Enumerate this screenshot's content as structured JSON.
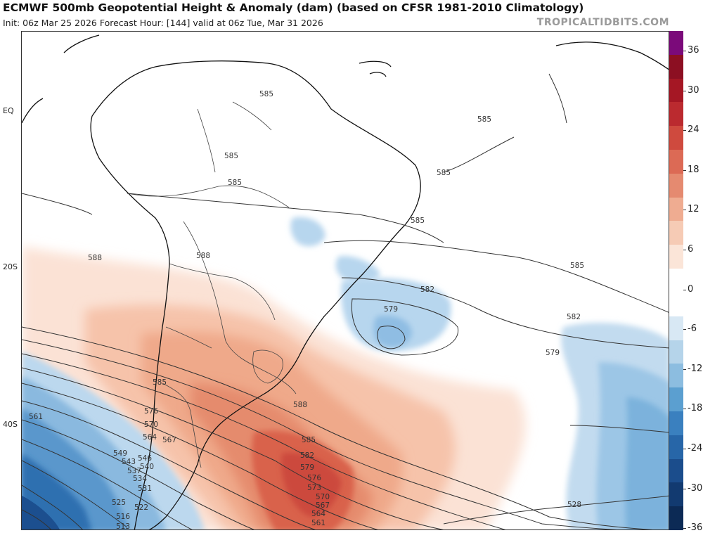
{
  "header": {
    "title": "ECMWF 500mb Geopotential Height & Anomaly (dam) (based on CFSR 1981-2010 Climatology)",
    "subtitle": "Init: 06z Mar 25 2026   Forecast Hour: [144]   valid at 06z Tue, Mar 31 2026",
    "brand": "TROPICALTIDBITS.COM"
  },
  "lat_labels": [
    "EQ",
    "20S",
    "40S"
  ],
  "colorbar": {
    "labels": [
      "36",
      "30",
      "24",
      "18",
      "12",
      "6",
      "0",
      "-6",
      "-12",
      "-18",
      "-24",
      "-30",
      "-36"
    ],
    "colors": [
      "#7b0a7a",
      "#8c0f22",
      "#a51724",
      "#bb2a2f",
      "#cf4a3e",
      "#dc6a55",
      "#e58a70",
      "#efac91",
      "#f6cbb5",
      "#fbe5d8",
      "#ffffff",
      "#ffffff",
      "#d8e8f4",
      "#b5d4ea",
      "#8cbde0",
      "#5b9fd0",
      "#3a80bf",
      "#2766a8",
      "#1b4d8c",
      "#123a70",
      "#0c2a55"
    ]
  },
  "contour_labels": [
    "585",
    "585",
    "585",
    "585",
    "585",
    "585",
    "588",
    "588",
    "585",
    "582",
    "579",
    "582",
    "579",
    "585",
    "588",
    "585",
    "582",
    "579",
    "576",
    "573",
    "570",
    "567",
    "564",
    "561",
    "561",
    "576",
    "570",
    "567",
    "564",
    "549",
    "546",
    "543",
    "540",
    "537",
    "534",
    "531",
    "525",
    "522",
    "516",
    "513",
    "528"
  ],
  "anomaly_colors": {
    "positive": "#e0694f",
    "negative": "#6fa6d6"
  }
}
